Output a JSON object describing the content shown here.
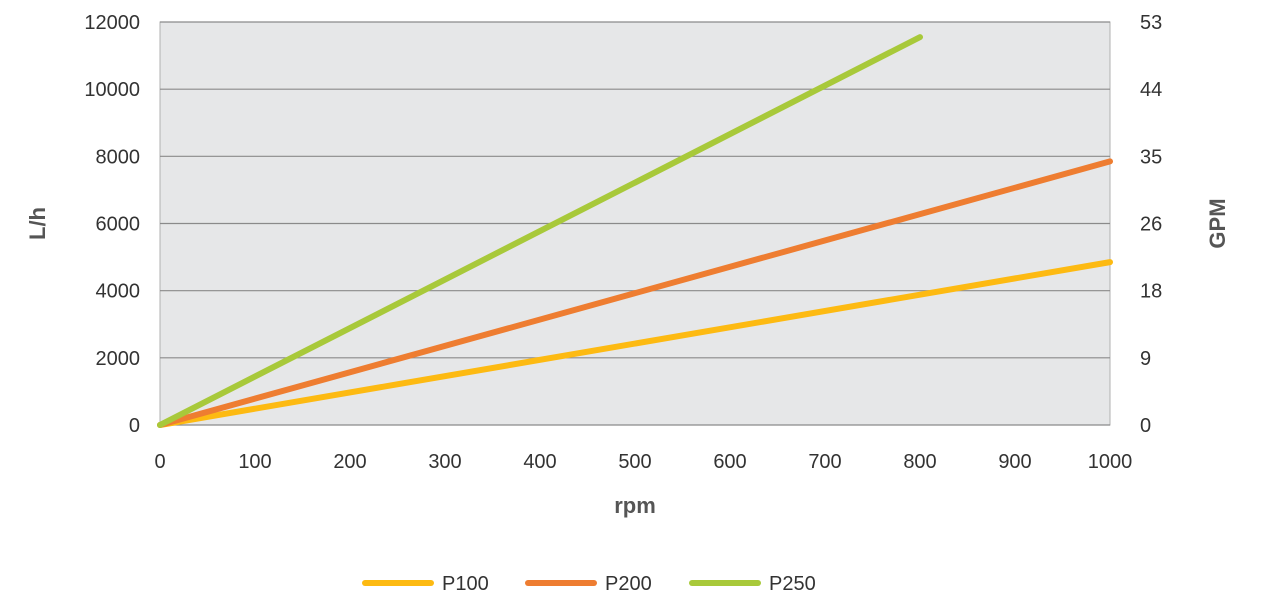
{
  "chart_data": {
    "type": "line",
    "xlabel": "rpm",
    "ylabel": "L/h",
    "y2label": "GPM",
    "xlim": [
      0,
      1000
    ],
    "ylim": [
      0,
      12000
    ],
    "x_ticks": [
      "0",
      "100",
      "200",
      "300",
      "400",
      "500",
      "600",
      "700",
      "800",
      "900",
      "1000"
    ],
    "y_ticks": [
      "0",
      "2000",
      "4000",
      "6000",
      "8000",
      "10000",
      "12000"
    ],
    "y2_ticks": [
      "0",
      "9",
      "18",
      "26",
      "35",
      "44",
      "53"
    ],
    "grid": true,
    "legend_position": "bottom",
    "series": [
      {
        "name": "P100",
        "color": "#FDBA12",
        "x": [
          0,
          1000
        ],
        "y": [
          0,
          4850
        ]
      },
      {
        "name": "P200",
        "color": "#EE7D31",
        "x": [
          0,
          1000
        ],
        "y": [
          0,
          7850
        ]
      },
      {
        "name": "P250",
        "color": "#A8C93A",
        "x": [
          0,
          800
        ],
        "y": [
          0,
          11550
        ]
      }
    ]
  }
}
